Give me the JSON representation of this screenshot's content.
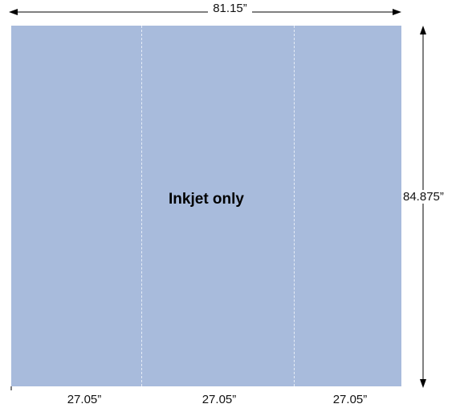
{
  "total_width_label": "81.15”",
  "total_height_label": "84.875”",
  "center_label": "Inkjet only",
  "panels": [
    {
      "width_label": "27.05”"
    },
    {
      "width_label": "27.05”"
    },
    {
      "width_label": "27.05”"
    }
  ],
  "colors": {
    "panel_fill": "#a8bbdc",
    "dimension_line": "#000000"
  }
}
